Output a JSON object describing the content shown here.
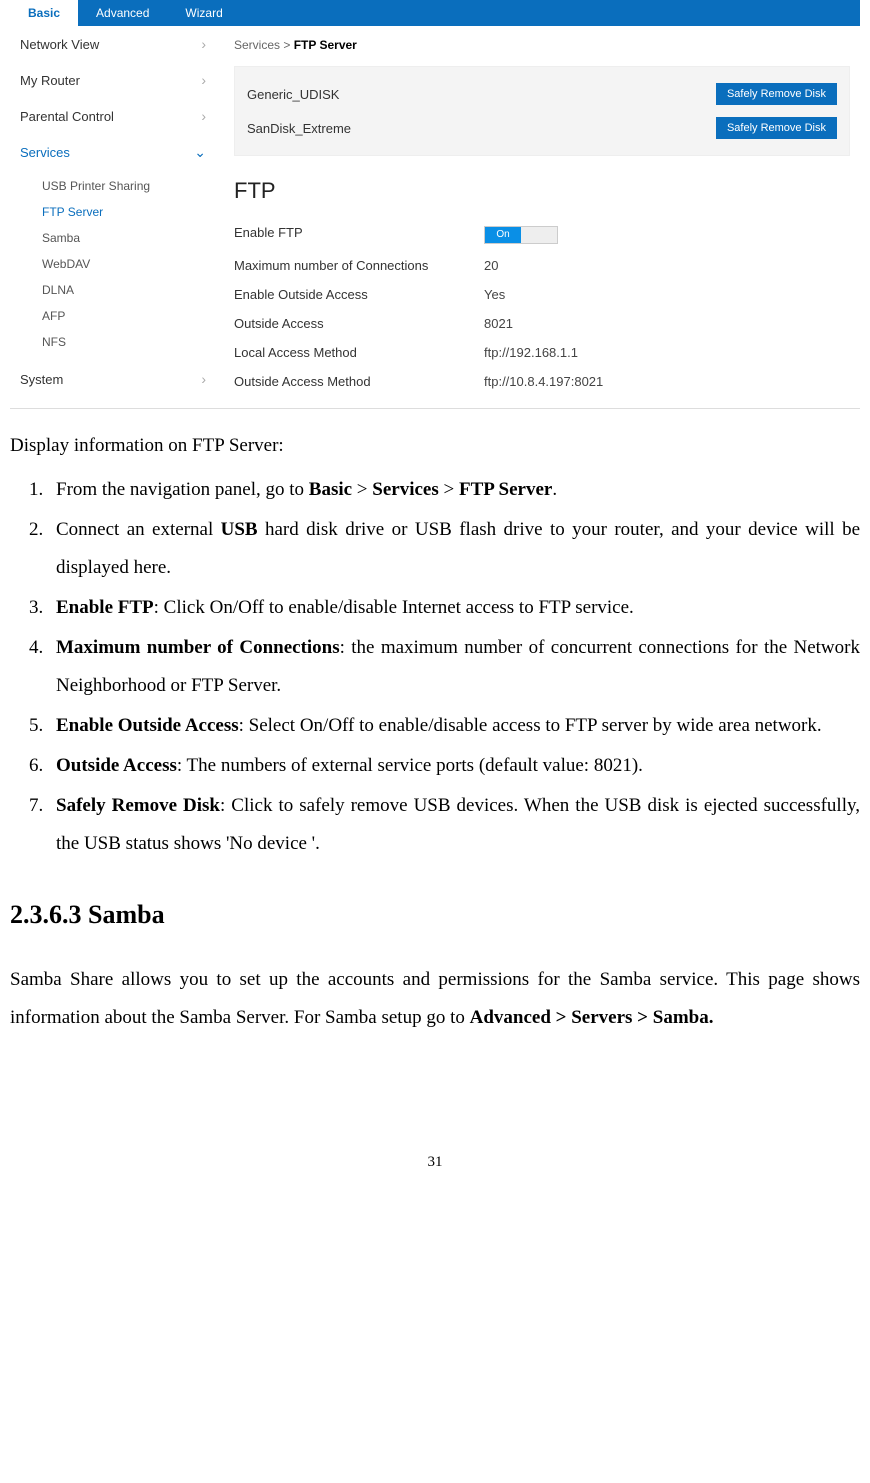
{
  "topbar": {
    "tabs": [
      {
        "label": "Basic",
        "active": true
      },
      {
        "label": "Advanced",
        "active": false
      },
      {
        "label": "Wizard",
        "active": false
      }
    ]
  },
  "sidebar": {
    "items": [
      {
        "label": "Network View",
        "expanded": false
      },
      {
        "label": "My Router",
        "expanded": false
      },
      {
        "label": "Parental Control",
        "expanded": false
      },
      {
        "label": "Services",
        "expanded": true,
        "active": true
      },
      {
        "label": "System",
        "expanded": false
      }
    ],
    "services_sub": [
      {
        "label": "USB Printer Sharing"
      },
      {
        "label": "FTP Server",
        "active": true
      },
      {
        "label": "Samba"
      },
      {
        "label": "WebDAV"
      },
      {
        "label": "DLNA"
      },
      {
        "label": "AFP"
      },
      {
        "label": "NFS"
      }
    ]
  },
  "breadcrumb": {
    "parent": "Services",
    "sep": " > ",
    "current": "FTP Server"
  },
  "disks": {
    "rows": [
      {
        "name": "Generic_UDISK",
        "button": "Safely Remove Disk"
      },
      {
        "name": "SanDisk_Extreme",
        "button": "Safely Remove Disk"
      }
    ]
  },
  "ftp": {
    "title": "FTP",
    "rows": [
      {
        "label": "Enable FTP",
        "type": "toggle",
        "value": "On"
      },
      {
        "label": "Maximum number of Connections",
        "value": "20"
      },
      {
        "label": "Enable Outside Access",
        "value": "Yes"
      },
      {
        "label": "Outside Access",
        "value": "8021"
      },
      {
        "label": "Local Access Method",
        "value": "ftp://192.168.1.1"
      },
      {
        "label": "Outside Access Method",
        "value": "ftp://10.8.4.197:8021"
      }
    ]
  },
  "doc": {
    "intro": "Display information on FTP Server:",
    "steps": [
      {
        "pre": "From the navigation panel, go to ",
        "b1": "Basic",
        "mid1": " > ",
        "b2": "Services",
        "mid2": " > ",
        "b3": "FTP Server",
        "post": "."
      },
      {
        "pre": "Connect an external ",
        "b1": "USB",
        "post": " hard disk drive or USB flash drive to your router, and your device will be displayed here."
      },
      {
        "b1": "Enable FTP",
        "post": ": Click On/Off to enable/disable Internet access to FTP service."
      },
      {
        "b1": "Maximum number of Connections",
        "post": ": the maximum number of concurrent connections for the Network Neighborhood or FTP Server."
      },
      {
        "b1": "Enable Outside Access",
        "post": ": Select On/Off to enable/disable access to FTP server by wide area network."
      },
      {
        "b1": "Outside Access",
        "post": ": The numbers of external service ports (default value: 8021)."
      },
      {
        "b1": "Safely Remove Disk",
        "post": ": Click to safely remove USB devices. When the USB disk is ejected successfully, the USB status shows 'No device '."
      }
    ],
    "h2": "2.3.6.3 Samba",
    "p_pre": "Samba Share allows you to set up the accounts and permissions for the Samba service. This page shows information about the Samba Server. For Samba setup go to ",
    "p_b": "Advanced > Servers > Samba.",
    "page_number": "31"
  }
}
